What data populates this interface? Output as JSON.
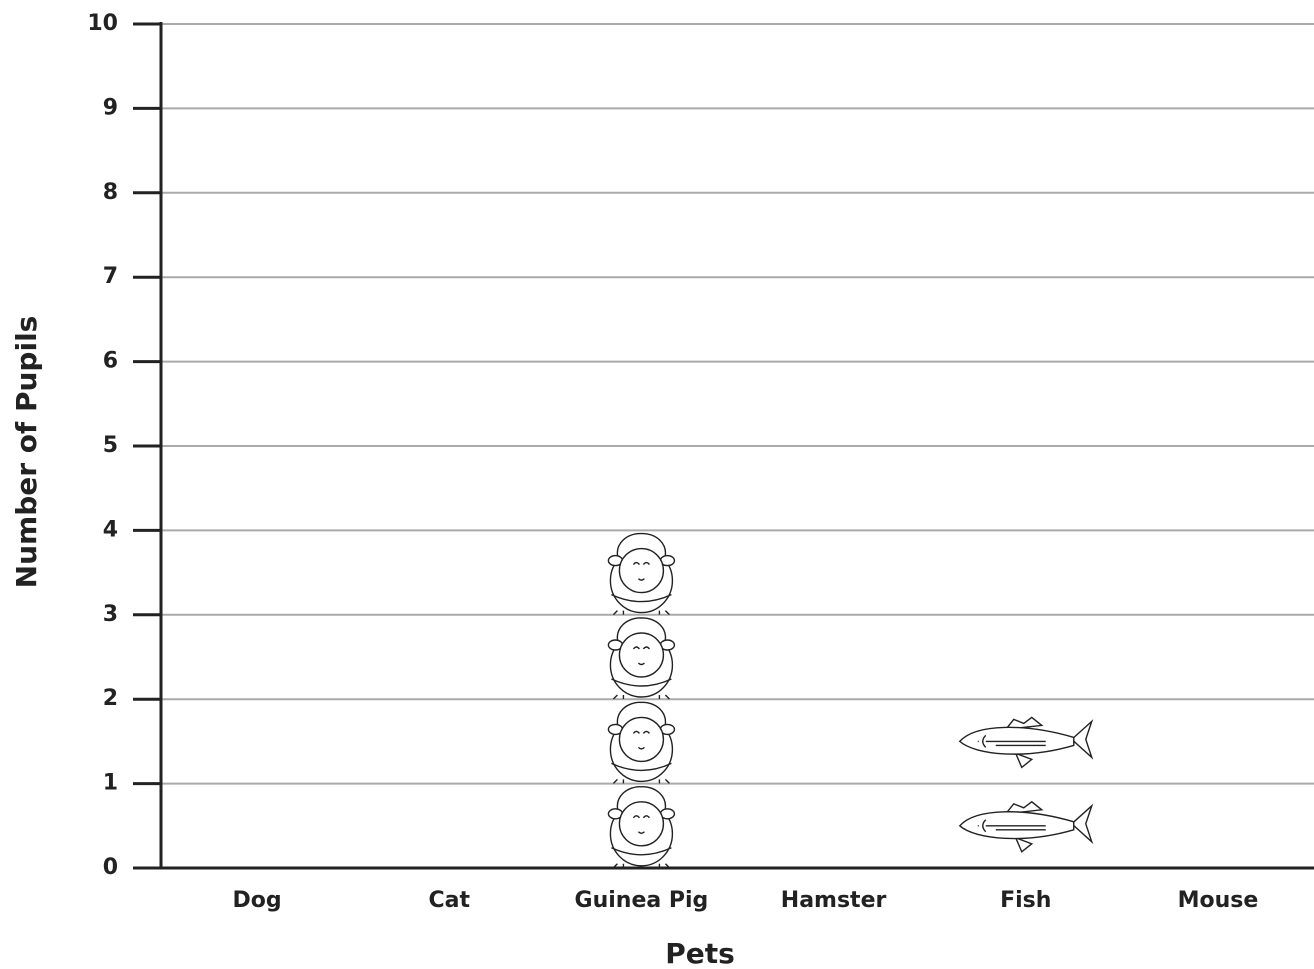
{
  "chart_data": {
    "type": "pictogram",
    "x_label": "Pets",
    "y_label": "Number of Pupils",
    "categories": [
      "Dog",
      "Cat",
      "Guinea Pig",
      "Hamster",
      "Fish",
      "Mouse"
    ],
    "values": [
      0,
      0,
      4,
      0,
      2,
      0
    ],
    "ylim": [
      0,
      10
    ],
    "yticks": [
      0,
      1,
      2,
      3,
      4,
      5,
      6,
      7,
      8,
      9,
      10
    ],
    "grid": true
  }
}
